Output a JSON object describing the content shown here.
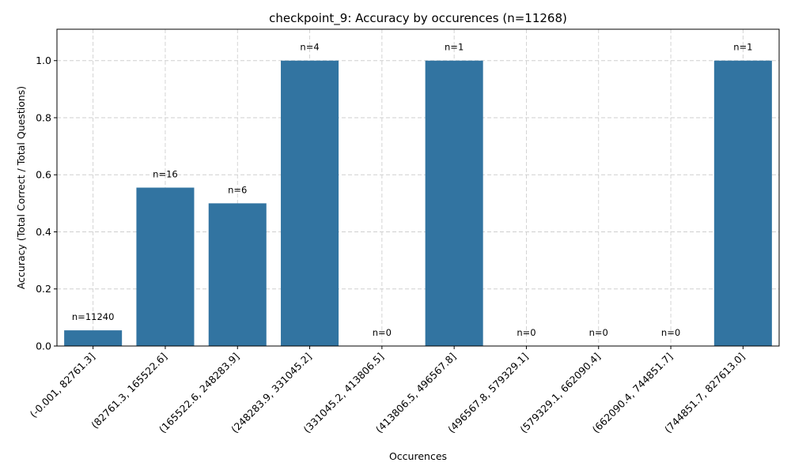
{
  "chart_data": {
    "type": "bar",
    "title": "checkpoint_9: Accuracy by occurences (n=11268)",
    "xlabel": "Occurences",
    "ylabel": "Accuracy (Total Correct / Total Questions)",
    "categories": [
      "(-0.001, 82761.3]",
      "(82761.3, 165522.6]",
      "(165522.6, 248283.9]",
      "(248283.9, 331045.2]",
      "(331045.2, 413806.5]",
      "(413806.5, 496567.8]",
      "(496567.8, 579329.1]",
      "(579329.1, 662090.4]",
      "(662090.4, 744851.7]",
      "(744851.7, 827613.0]"
    ],
    "values": [
      0.055,
      0.555,
      0.5,
      1.0,
      0.0,
      1.0,
      0.0,
      0.0,
      0.0,
      1.0
    ],
    "annotations": [
      "n=11240",
      "n=16",
      "n=6",
      "n=4",
      "n=0",
      "n=1",
      "n=0",
      "n=0",
      "n=0",
      "n=1"
    ],
    "ylim": [
      0,
      1.11
    ],
    "yticks": [
      0.0,
      0.2,
      0.4,
      0.6,
      0.8,
      1.0
    ],
    "ytick_labels": [
      "0.0",
      "0.2",
      "0.4",
      "0.6",
      "0.8",
      "1.0"
    ],
    "grid": true,
    "bar_color": "#3274a1"
  }
}
